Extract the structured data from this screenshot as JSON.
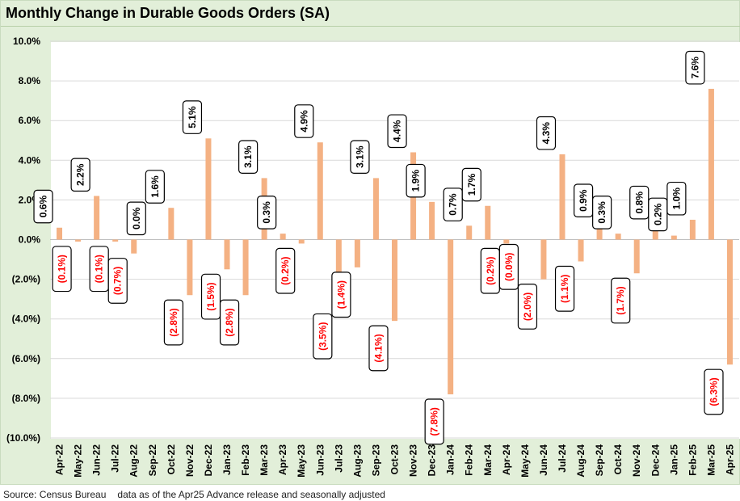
{
  "chart_data": {
    "type": "bar",
    "title": "Monthly Change in Durable Goods Orders (SA)",
    "xlabel": "",
    "ylabel": "",
    "ylim": [
      -10,
      10
    ],
    "yticks": [
      "10.0%",
      "8.0%",
      "6.0%",
      "4.0%",
      "2.0%",
      "0.0%",
      "(2.0%)",
      "(4.0%)",
      "(6.0%)",
      "(8.0%)",
      "(10.0%)"
    ],
    "ytick_values": [
      10,
      8,
      6,
      4,
      2,
      0,
      -2,
      -4,
      -6,
      -8,
      -10
    ],
    "categories": [
      "Apr-22",
      "May-22",
      "Jun-22",
      "Jul-22",
      "Aug-22",
      "Sep-22",
      "Oct-22",
      "Nov-22",
      "Dec-22",
      "Jan-23",
      "Feb-23",
      "Mar-23",
      "Apr-23",
      "May-23",
      "Jun-23",
      "Jul-23",
      "Aug-23",
      "Sep-23",
      "Oct-23",
      "Nov-23",
      "Dec-23",
      "Jan-24",
      "Feb-24",
      "Mar-24",
      "Apr-24",
      "May-24",
      "Jun-24",
      "Jul-24",
      "Aug-24",
      "Sep-24",
      "Oct-24",
      "Nov-24",
      "Dec-24",
      "Jan-25",
      "Feb-25",
      "Mar-25",
      "Apr-25"
    ],
    "values": [
      0.6,
      -0.1,
      2.2,
      -0.1,
      -0.7,
      0.0,
      1.6,
      -2.8,
      5.1,
      -1.5,
      -2.8,
      3.1,
      0.3,
      -0.2,
      4.9,
      -3.5,
      -1.4,
      3.1,
      -4.1,
      4.4,
      1.9,
      -7.8,
      0.7,
      1.7,
      -0.2,
      0.0,
      -2.0,
      4.3,
      -1.1,
      0.9,
      0.3,
      -1.7,
      0.8,
      0.2,
      1.0,
      7.6,
      -6.3
    ],
    "labels": [
      "0.6%",
      "(0.1%)",
      "2.2%",
      "(0.1%)",
      "(0.7%)",
      "0.0%",
      "1.6%",
      "(2.8%)",
      "5.1%",
      "(1.5%)",
      "(2.8%)",
      "3.1%",
      "0.3%",
      "(0.2%)",
      "4.9%",
      "(3.5%)",
      "(1.4%)",
      "3.1%",
      "(4.1%)",
      "4.4%",
      "1.9%",
      "(7.8%)",
      "0.7%",
      "1.7%",
      "(0.2%)",
      "(0.0%)",
      "(2.0%)",
      "4.3%",
      "(1.1%)",
      "0.9%",
      "0.3%",
      "(1.7%)",
      "0.8%",
      "0.2%",
      "1.0%",
      "7.6%",
      "(6.3%)"
    ],
    "grid": true,
    "colors": {
      "bar": "#f4b183",
      "positive_label": "#000000",
      "negative_label": "#ff0000",
      "gridline": "#d9d9d9",
      "frame": "#e2efd9"
    }
  },
  "source": "Source: Census Bureau",
  "note": "data as of the Apr25 Advance release and seasonally adjusted"
}
